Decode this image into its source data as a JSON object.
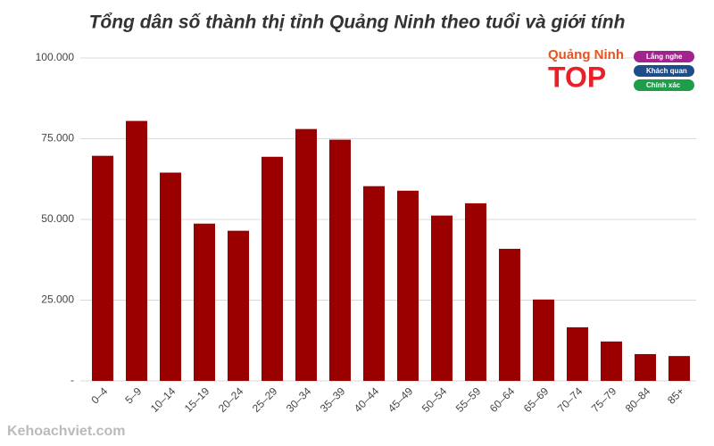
{
  "chart_data": {
    "type": "bar",
    "title": "Tổng dân số thành thị tỉnh Quảng Ninh theo tuổi và giới tính",
    "categories": [
      "0–4",
      "5–9",
      "10–14",
      "15–19",
      "20–24",
      "25–29",
      "30–34",
      "35–39",
      "40–44",
      "45–49",
      "50–54",
      "55–59",
      "60–64",
      "65–69",
      "70–74",
      "75–79",
      "80–84",
      "85+"
    ],
    "values": [
      69700,
      80500,
      64500,
      48700,
      46500,
      69400,
      78000,
      74700,
      60300,
      58900,
      51200,
      55000,
      40900,
      25200,
      16600,
      12200,
      8300,
      7700
    ],
    "color": "#9b0000",
    "ylim": [
      0,
      100000
    ],
    "yticks": [
      {
        "value": 0,
        "label": "-"
      },
      {
        "value": 25000,
        "label": "25.000"
      },
      {
        "value": 50000,
        "label": "50.000"
      },
      {
        "value": 75000,
        "label": "75.000"
      },
      {
        "value": 100000,
        "label": "100.000"
      }
    ],
    "grid": true
  },
  "logo": {
    "name": "Quảng Ninh",
    "word": "TOP",
    "badges": [
      "Lắng nghe",
      "Khách quan",
      "Chính xác"
    ]
  },
  "watermark": "Kehoachviet.com"
}
